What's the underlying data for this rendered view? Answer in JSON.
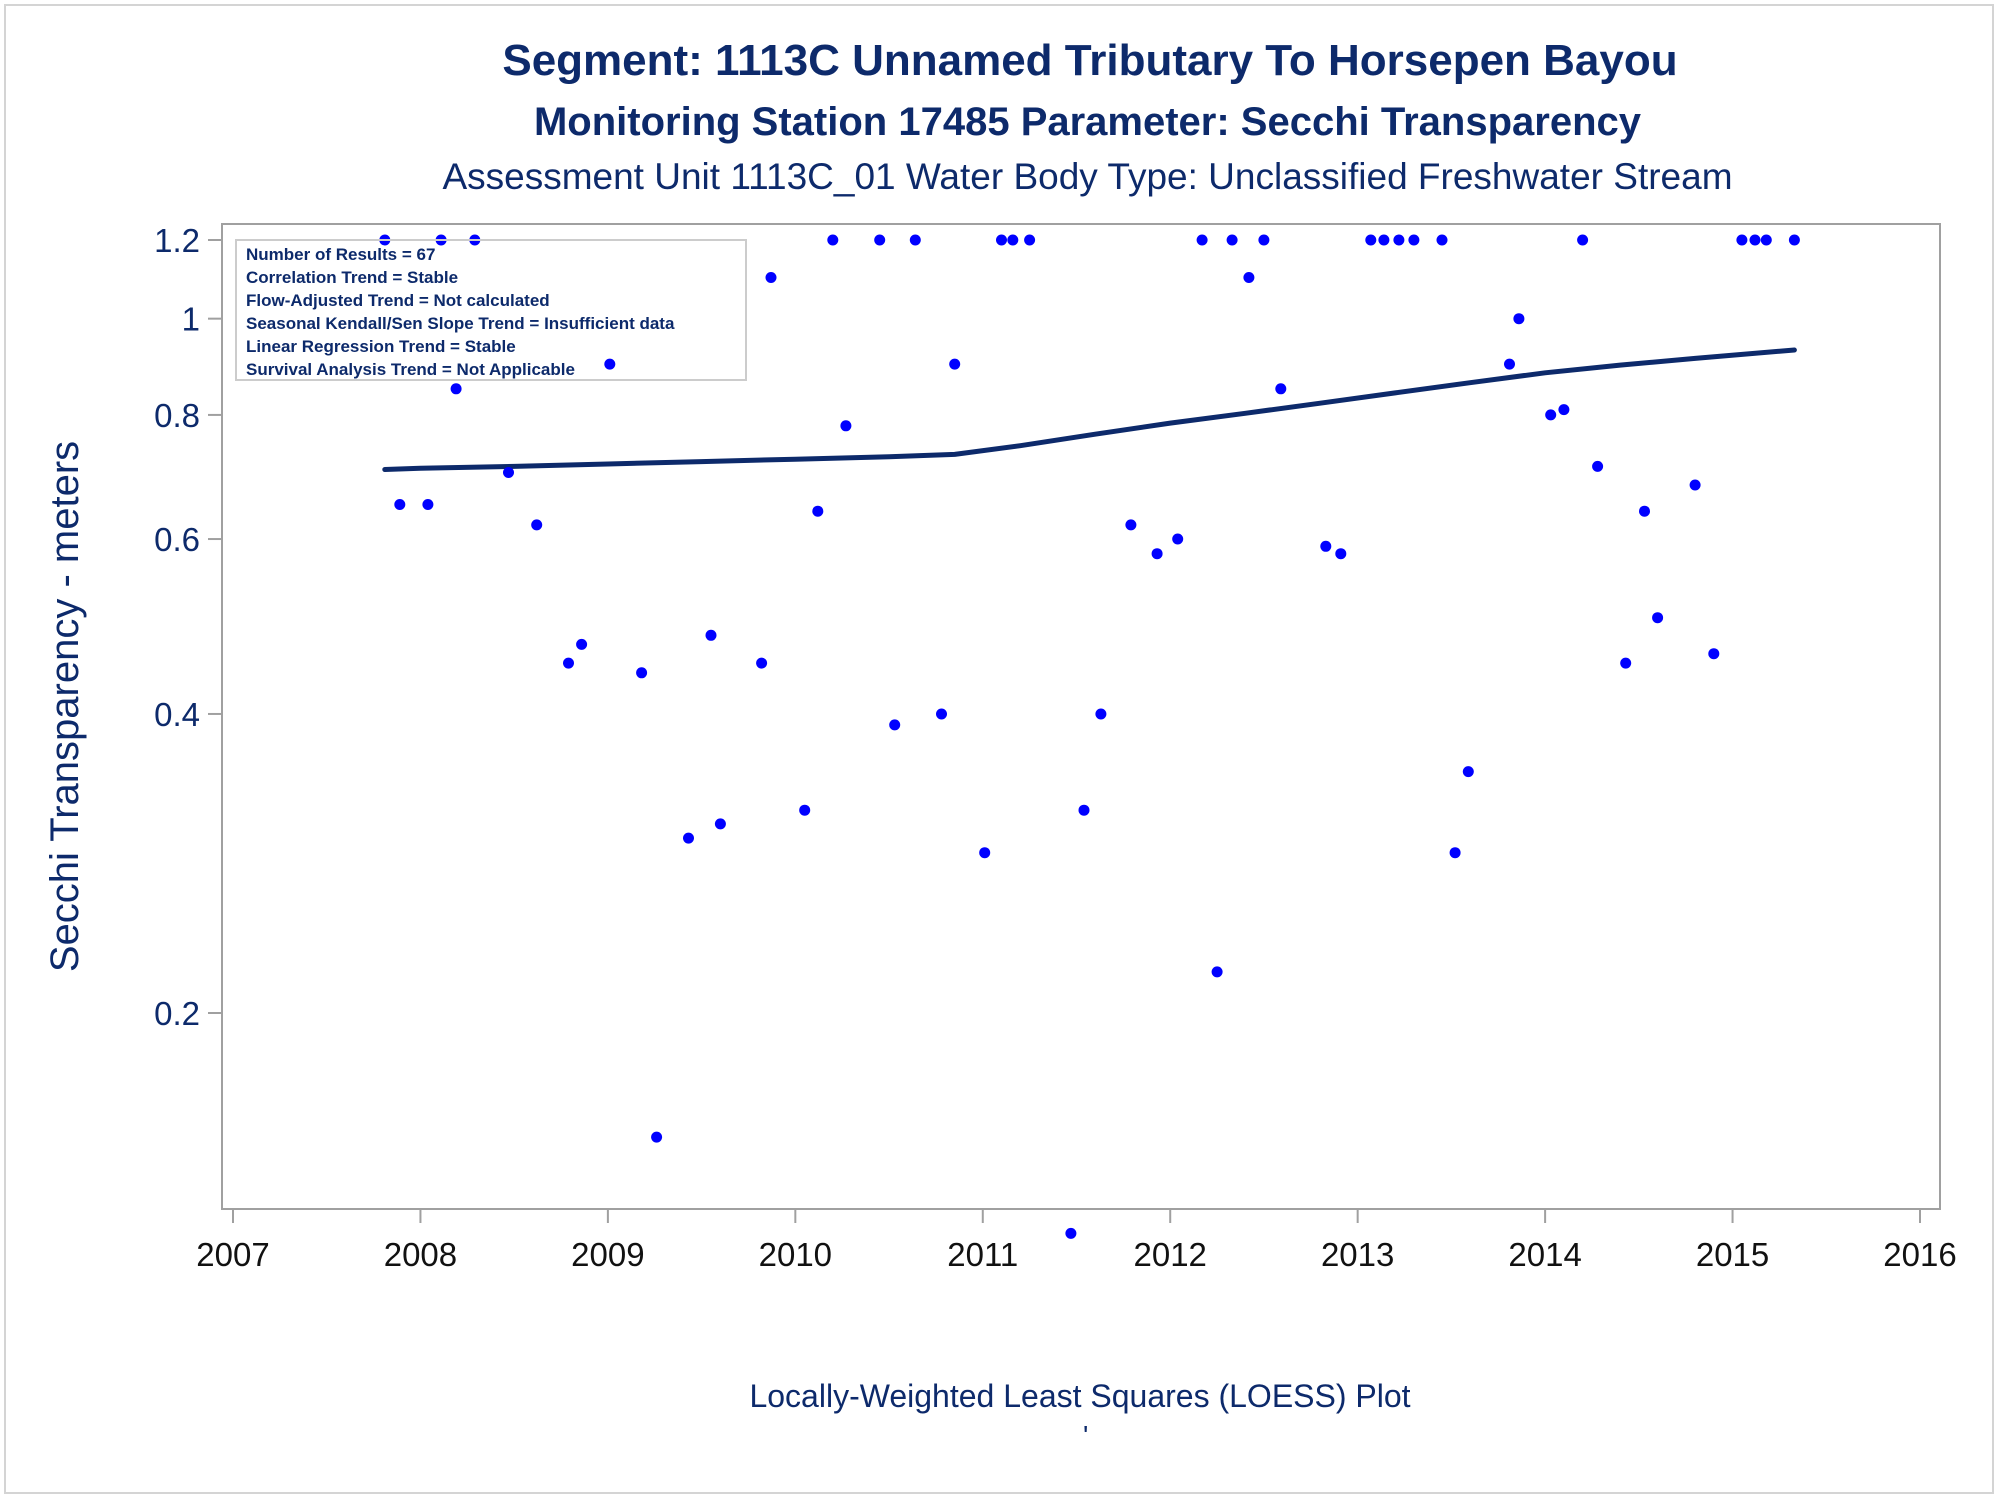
{
  "header": {
    "title": "Segment: 1113C  Unnamed Tributary To Horsepen Bayou",
    "subtitle": "Monitoring Station 17485 Parameter: Secchi Transparency",
    "subtitle2": "Assessment Unit 1113C_01   Water Body Type: Unclassified Freshwater Stream"
  },
  "footer": {
    "caption": "Locally-Weighted Least Squares (LOESS) Plot",
    "mark": "'"
  },
  "stats_box": {
    "lines": [
      "Number of Results = 67",
      "Correlation Trend = Stable",
      "Flow-Adjusted Trend = Not calculated",
      "Seasonal Kendall/Sen Slope Trend = Insufficient data",
      "Linear Regression Trend = Stable",
      "Survival Analysis Trend = Not Applicable"
    ]
  },
  "colors": {
    "text": "#0d2a6b",
    "points": "#0000ff",
    "loess_line": "#0d2a6b",
    "axis": "#a0a0a0"
  },
  "chart_data": {
    "type": "scatter",
    "title": "Segment: 1113C  Unnamed Tributary To Horsepen Bayou",
    "xlabel": "",
    "ylabel": "Secchi Transparency - meters",
    "yscale": "log",
    "xlim": [
      2007,
      2016
    ],
    "ylim": [
      0.1,
      1.2
    ],
    "yticks": [
      0.2,
      0.4,
      0.6,
      0.8,
      1,
      1.2
    ],
    "ytick_labels": [
      "0.2",
      "0.4",
      "0.6",
      "0.8",
      "1",
      "1.2"
    ],
    "xticks": [
      2007,
      2008,
      2009,
      2010,
      2011,
      2012,
      2013,
      2014,
      2015,
      2016
    ],
    "xtick_labels": [
      "2007",
      "2008",
      "2009",
      "2010",
      "2011",
      "2012",
      "2013",
      "2014",
      "2015",
      "2016"
    ],
    "grid": false,
    "legend": "top-left stats box",
    "series": [
      {
        "kind": "points",
        "x": [
          2007.81,
          2007.89,
          2008.04,
          2008.11,
          2008.19,
          2008.29,
          2008.47,
          2008.62,
          2008.79,
          2008.86,
          2009.01,
          2009.18,
          2009.26,
          2009.43,
          2009.55,
          2009.6,
          2009.82,
          2009.87,
          2010.05,
          2010.12,
          2010.2,
          2010.27,
          2010.45,
          2010.53,
          2010.64,
          2010.78,
          2010.85,
          2011.01,
          2011.1,
          2011.16,
          2011.25,
          2011.47,
          2011.54,
          2011.63,
          2011.79,
          2011.93,
          2012.04,
          2012.17,
          2012.25,
          2012.33,
          2012.42,
          2012.5,
          2012.59,
          2012.83,
          2012.91,
          2013.07,
          2013.14,
          2013.22,
          2013.3,
          2013.45,
          2013.52,
          2013.59,
          2013.81,
          2013.86,
          2014.03,
          2014.1,
          2014.2,
          2014.28,
          2014.43,
          2014.53,
          2014.6,
          2014.8,
          2014.9,
          2015.05,
          2015.12,
          2015.18,
          2015.33
        ],
        "y": [
          1.2,
          0.65,
          0.65,
          1.2,
          0.85,
          1.2,
          0.7,
          0.62,
          0.45,
          0.47,
          0.9,
          0.44,
          0.15,
          0.3,
          0.48,
          0.31,
          0.45,
          1.1,
          0.32,
          0.64,
          1.2,
          0.78,
          1.2,
          0.39,
          1.2,
          0.4,
          0.9,
          0.29,
          1.2,
          1.2,
          1.2,
          0.12,
          0.32,
          0.4,
          0.62,
          0.58,
          0.6,
          1.2,
          0.22,
          1.2,
          1.1,
          1.2,
          0.85,
          0.59,
          0.58,
          1.2,
          1.2,
          1.2,
          1.2,
          1.2,
          0.29,
          0.35,
          0.9,
          1.0,
          0.8,
          0.81,
          1.2,
          0.71,
          0.45,
          0.64,
          0.5,
          0.68,
          0.46,
          1.2,
          1.2,
          1.2,
          1.2
        ]
      },
      {
        "kind": "loess_line",
        "x": [
          2007.81,
          2008.0,
          2008.5,
          2009.0,
          2009.5,
          2010.0,
          2010.5,
          2010.85,
          2011.2,
          2011.6,
          2012.0,
          2012.4,
          2012.8,
          2013.2,
          2013.6,
          2014.0,
          2014.4,
          2014.8,
          2015.33
        ],
        "y": [
          0.705,
          0.707,
          0.71,
          0.714,
          0.718,
          0.722,
          0.726,
          0.73,
          0.745,
          0.765,
          0.785,
          0.803,
          0.822,
          0.842,
          0.862,
          0.882,
          0.898,
          0.912,
          0.93
        ]
      }
    ]
  }
}
